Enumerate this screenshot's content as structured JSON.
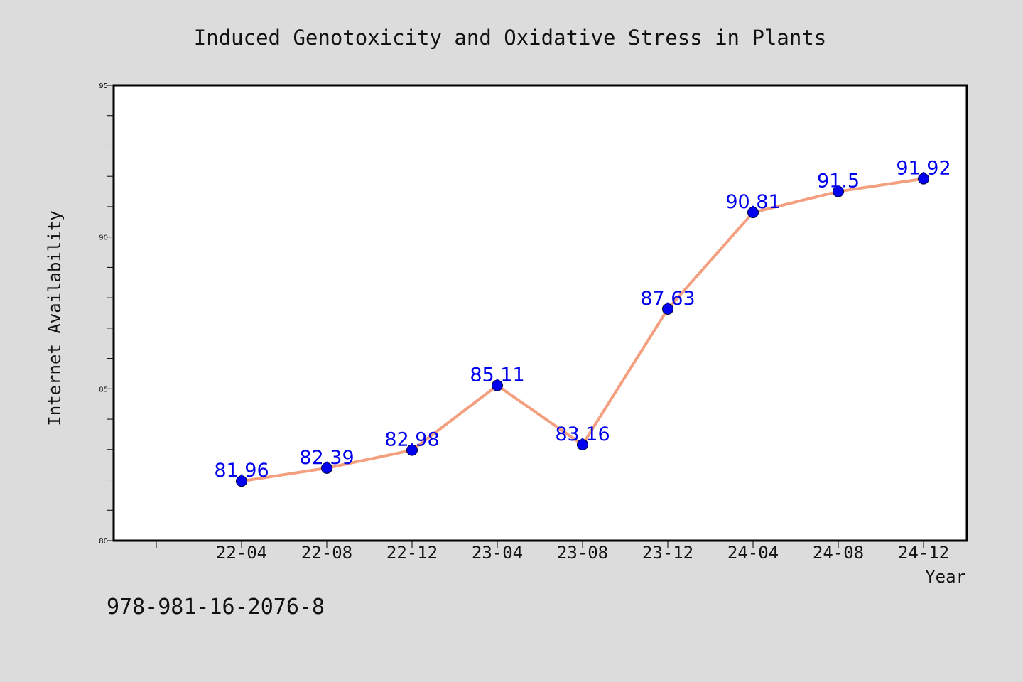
{
  "chart_data": {
    "type": "line",
    "title": "Induced Genotoxicity and Oxidative Stress in Plants",
    "xlabel": "Year",
    "ylabel": "Internet Availability",
    "categories": [
      "22-04",
      "22-08",
      "22-12",
      "23-04",
      "23-08",
      "23-12",
      "24-04",
      "24-08",
      "24-12"
    ],
    "series": [
      {
        "values": [
          81.96,
          82.39,
          82.98,
          85.11,
          83.16,
          87.63,
          90.81,
          91.5,
          91.92
        ],
        "labels": [
          "81.96",
          "82.39",
          "82.98",
          "85.11",
          "83.16",
          "87.63",
          "90.81",
          "91.5",
          "91.92"
        ]
      }
    ],
    "ylim": [
      80,
      95
    ],
    "yticks": [
      "80",
      "85",
      "90",
      "95"
    ],
    "grid": false,
    "legend": "none",
    "colors": {
      "line": "#f4a080",
      "marker": "#0000ee",
      "label": "#0000ee",
      "background": "#dcdcdc",
      "plot": "#ffffff"
    }
  },
  "footnote": "978-981-16-2076-8"
}
